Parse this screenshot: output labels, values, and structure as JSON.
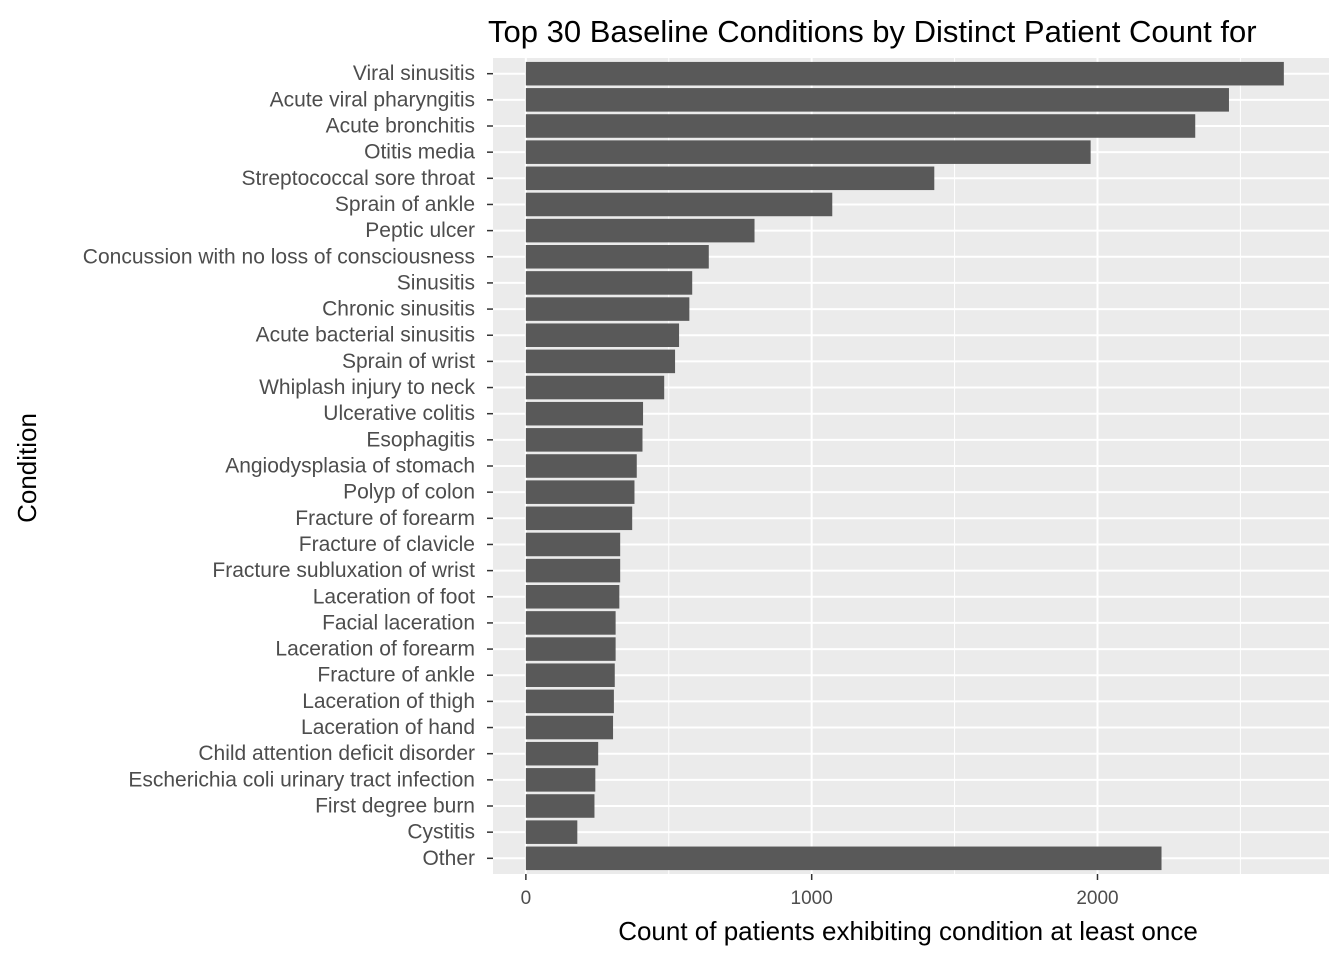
{
  "chart_data": {
    "type": "bar",
    "orientation": "horizontal",
    "title": "Top 30 Baseline Conditions by Distinct Patient Count for",
    "xlabel": "Count of patients exhibiting condition at least once",
    "ylabel": "Condition",
    "xlim": [
      -115,
      2810
    ],
    "xticks": [
      0,
      1000,
      2000
    ],
    "grid": true,
    "colors": {
      "panel": "#ebebeb",
      "bar": "#595959",
      "grid": "#ffffff",
      "tick_text": "#4d4d4d"
    },
    "categories": [
      "Viral sinusitis",
      "Acute viral pharyngitis",
      "Acute bronchitis",
      "Otitis media",
      "Streptococcal sore throat",
      "Sprain of ankle",
      "Peptic ulcer",
      "Concussion with no loss of consciousness",
      "Sinusitis",
      "Chronic sinusitis",
      "Acute bacterial sinusitis",
      "Sprain of wrist",
      "Whiplash injury to neck",
      "Ulcerative colitis",
      "Esophagitis",
      "Angiodysplasia of stomach",
      "Polyp of colon",
      "Fracture of forearm",
      "Fracture of clavicle",
      "Fracture subluxation of wrist",
      "Laceration of foot",
      "Facial laceration",
      "Laceration of forearm",
      "Fracture of ankle",
      "Laceration of thigh",
      "Laceration of hand",
      "Child attention deficit disorder",
      "Escherichia coli urinary tract infection",
      "First degree burn",
      "Cystitis",
      "Other"
    ],
    "values": [
      2652,
      2460,
      2342,
      1976,
      1429,
      1072,
      800,
      640,
      582,
      572,
      536,
      522,
      484,
      410,
      408,
      388,
      380,
      372,
      330,
      330,
      327,
      314,
      314,
      311,
      308,
      305,
      253,
      243,
      240,
      180,
      2224
    ]
  }
}
